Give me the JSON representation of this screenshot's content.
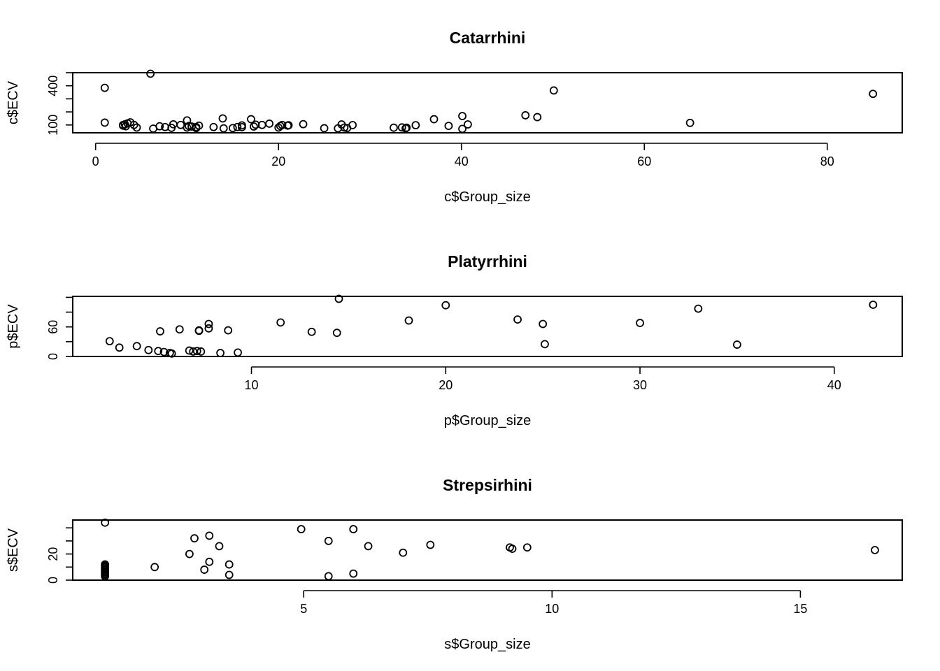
{
  "chart_data": [
    {
      "type": "scatter",
      "title": "Catarrhini",
      "xlabel": "c$Group_size",
      "ylabel": "c$ECV",
      "xlim": [
        -2.5,
        88.2
      ],
      "ylim": [
        40,
        500
      ],
      "xticks": [
        0,
        20,
        40,
        60,
        80
      ],
      "yticks": [
        100,
        200,
        300,
        400,
        500
      ],
      "ytick_labels": [
        "100",
        "",
        "",
        "400",
        ""
      ],
      "points": [
        {
          "x": 1,
          "y": 384
        },
        {
          "x": 1,
          "y": 118
        },
        {
          "x": 6,
          "y": 492
        },
        {
          "x": 3,
          "y": 95
        },
        {
          "x": 3,
          "y": 100
        },
        {
          "x": 3.2,
          "y": 105
        },
        {
          "x": 3.5,
          "y": 112
        },
        {
          "x": 3.3,
          "y": 90
        },
        {
          "x": 3.8,
          "y": 120
        },
        {
          "x": 4.2,
          "y": 100
        },
        {
          "x": 4.5,
          "y": 80
        },
        {
          "x": 6.3,
          "y": 72
        },
        {
          "x": 7,
          "y": 90
        },
        {
          "x": 7.6,
          "y": 84
        },
        {
          "x": 8.3,
          "y": 78
        },
        {
          "x": 8.5,
          "y": 105
        },
        {
          "x": 9.3,
          "y": 100
        },
        {
          "x": 10,
          "y": 135
        },
        {
          "x": 10,
          "y": 80
        },
        {
          "x": 10.2,
          "y": 92
        },
        {
          "x": 10.5,
          "y": 88
        },
        {
          "x": 11,
          "y": 76
        },
        {
          "x": 11,
          "y": 84
        },
        {
          "x": 11.3,
          "y": 95
        },
        {
          "x": 12.9,
          "y": 84
        },
        {
          "x": 13.9,
          "y": 150
        },
        {
          "x": 14,
          "y": 74
        },
        {
          "x": 15,
          "y": 76
        },
        {
          "x": 15.5,
          "y": 84
        },
        {
          "x": 16,
          "y": 97
        },
        {
          "x": 16,
          "y": 83
        },
        {
          "x": 17,
          "y": 144
        },
        {
          "x": 17.3,
          "y": 88
        },
        {
          "x": 17.5,
          "y": 102
        },
        {
          "x": 18.2,
          "y": 100
        },
        {
          "x": 19,
          "y": 110
        },
        {
          "x": 20,
          "y": 80
        },
        {
          "x": 20.2,
          "y": 92
        },
        {
          "x": 20.4,
          "y": 100
        },
        {
          "x": 21,
          "y": 95
        },
        {
          "x": 21.1,
          "y": 98
        },
        {
          "x": 22.7,
          "y": 106
        },
        {
          "x": 25,
          "y": 75
        },
        {
          "x": 26.5,
          "y": 74
        },
        {
          "x": 26.9,
          "y": 104
        },
        {
          "x": 27.2,
          "y": 80
        },
        {
          "x": 27.5,
          "y": 76
        },
        {
          "x": 28.1,
          "y": 99
        },
        {
          "x": 32.6,
          "y": 79
        },
        {
          "x": 33.5,
          "y": 81
        },
        {
          "x": 33.9,
          "y": 74
        },
        {
          "x": 34,
          "y": 79
        },
        {
          "x": 35,
          "y": 98
        },
        {
          "x": 37,
          "y": 144
        },
        {
          "x": 38.6,
          "y": 93
        },
        {
          "x": 40.1,
          "y": 168
        },
        {
          "x": 40.1,
          "y": 70
        },
        {
          "x": 40.7,
          "y": 104
        },
        {
          "x": 47,
          "y": 174
        },
        {
          "x": 48.3,
          "y": 160
        },
        {
          "x": 50.1,
          "y": 364
        },
        {
          "x": 65,
          "y": 116
        },
        {
          "x": 85,
          "y": 338
        }
      ]
    },
    {
      "type": "scatter",
      "title": "Platyrrhini",
      "xlabel": "p$Group_size",
      "ylabel": "p$ECV",
      "xlim": [
        0.8,
        43.5
      ],
      "ylim": [
        0,
        122
      ],
      "xticks": [
        10,
        20,
        30,
        40
      ],
      "yticks": [
        0,
        30,
        60,
        90,
        120
      ],
      "ytick_labels": [
        "0",
        "",
        "60",
        "",
        ""
      ],
      "points": [
        {
          "x": 2.7,
          "y": 31
        },
        {
          "x": 3.2,
          "y": 18
        },
        {
          "x": 4.1,
          "y": 21
        },
        {
          "x": 4.7,
          "y": 13
        },
        {
          "x": 5.2,
          "y": 11
        },
        {
          "x": 5.3,
          "y": 51
        },
        {
          "x": 5.5,
          "y": 9
        },
        {
          "x": 5.8,
          "y": 7
        },
        {
          "x": 5.9,
          "y": 6
        },
        {
          "x": 6.3,
          "y": 55
        },
        {
          "x": 6.8,
          "y": 12
        },
        {
          "x": 7,
          "y": 10
        },
        {
          "x": 7.2,
          "y": 11
        },
        {
          "x": 7.3,
          "y": 52
        },
        {
          "x": 7.3,
          "y": 53
        },
        {
          "x": 7.4,
          "y": 10
        },
        {
          "x": 7.8,
          "y": 57
        },
        {
          "x": 7.8,
          "y": 66
        },
        {
          "x": 8.4,
          "y": 7
        },
        {
          "x": 8.8,
          "y": 53
        },
        {
          "x": 9.3,
          "y": 8
        },
        {
          "x": 11.5,
          "y": 69
        },
        {
          "x": 13.1,
          "y": 50
        },
        {
          "x": 14.4,
          "y": 48
        },
        {
          "x": 14.5,
          "y": 117
        },
        {
          "x": 18.1,
          "y": 73
        },
        {
          "x": 20,
          "y": 104
        },
        {
          "x": 23.7,
          "y": 75
        },
        {
          "x": 25,
          "y": 66
        },
        {
          "x": 25.1,
          "y": 25
        },
        {
          "x": 30,
          "y": 68
        },
        {
          "x": 33,
          "y": 97
        },
        {
          "x": 35,
          "y": 24
        },
        {
          "x": 42,
          "y": 105
        }
      ]
    },
    {
      "type": "scatter",
      "title": "Strepsirhini",
      "xlabel": "s$Group_size",
      "ylabel": "s$ECV",
      "xlim": [
        0.35,
        17.05
      ],
      "ylim": [
        0,
        46
      ],
      "xticks": [
        5,
        10,
        15
      ],
      "yticks": [
        0,
        10,
        20,
        30,
        40
      ],
      "ytick_labels": [
        "0",
        "",
        "20",
        "",
        ""
      ],
      "points": [
        {
          "x": 1,
          "y": 44
        },
        {
          "x": 1,
          "y": 12
        },
        {
          "x": 1,
          "y": 11
        },
        {
          "x": 1,
          "y": 10
        },
        {
          "x": 1,
          "y": 9
        },
        {
          "x": 1,
          "y": 8
        },
        {
          "x": 1,
          "y": 7
        },
        {
          "x": 1,
          "y": 6
        },
        {
          "x": 1,
          "y": 5
        },
        {
          "x": 1,
          "y": 4
        },
        {
          "x": 1,
          "y": 3
        },
        {
          "x": 2,
          "y": 10
        },
        {
          "x": 2.7,
          "y": 20
        },
        {
          "x": 2.8,
          "y": 32
        },
        {
          "x": 3,
          "y": 8
        },
        {
          "x": 3.1,
          "y": 14
        },
        {
          "x": 3.1,
          "y": 34
        },
        {
          "x": 3.3,
          "y": 26
        },
        {
          "x": 3.5,
          "y": 12
        },
        {
          "x": 3.5,
          "y": 4
        },
        {
          "x": 4.95,
          "y": 39
        },
        {
          "x": 5.5,
          "y": 30
        },
        {
          "x": 5.5,
          "y": 3
        },
        {
          "x": 6,
          "y": 39
        },
        {
          "x": 6,
          "y": 5
        },
        {
          "x": 6.3,
          "y": 26
        },
        {
          "x": 7,
          "y": 21
        },
        {
          "x": 7.55,
          "y": 27
        },
        {
          "x": 9.15,
          "y": 25
        },
        {
          "x": 9.2,
          "y": 24
        },
        {
          "x": 9.5,
          "y": 25
        },
        {
          "x": 16.5,
          "y": 23
        }
      ]
    }
  ]
}
